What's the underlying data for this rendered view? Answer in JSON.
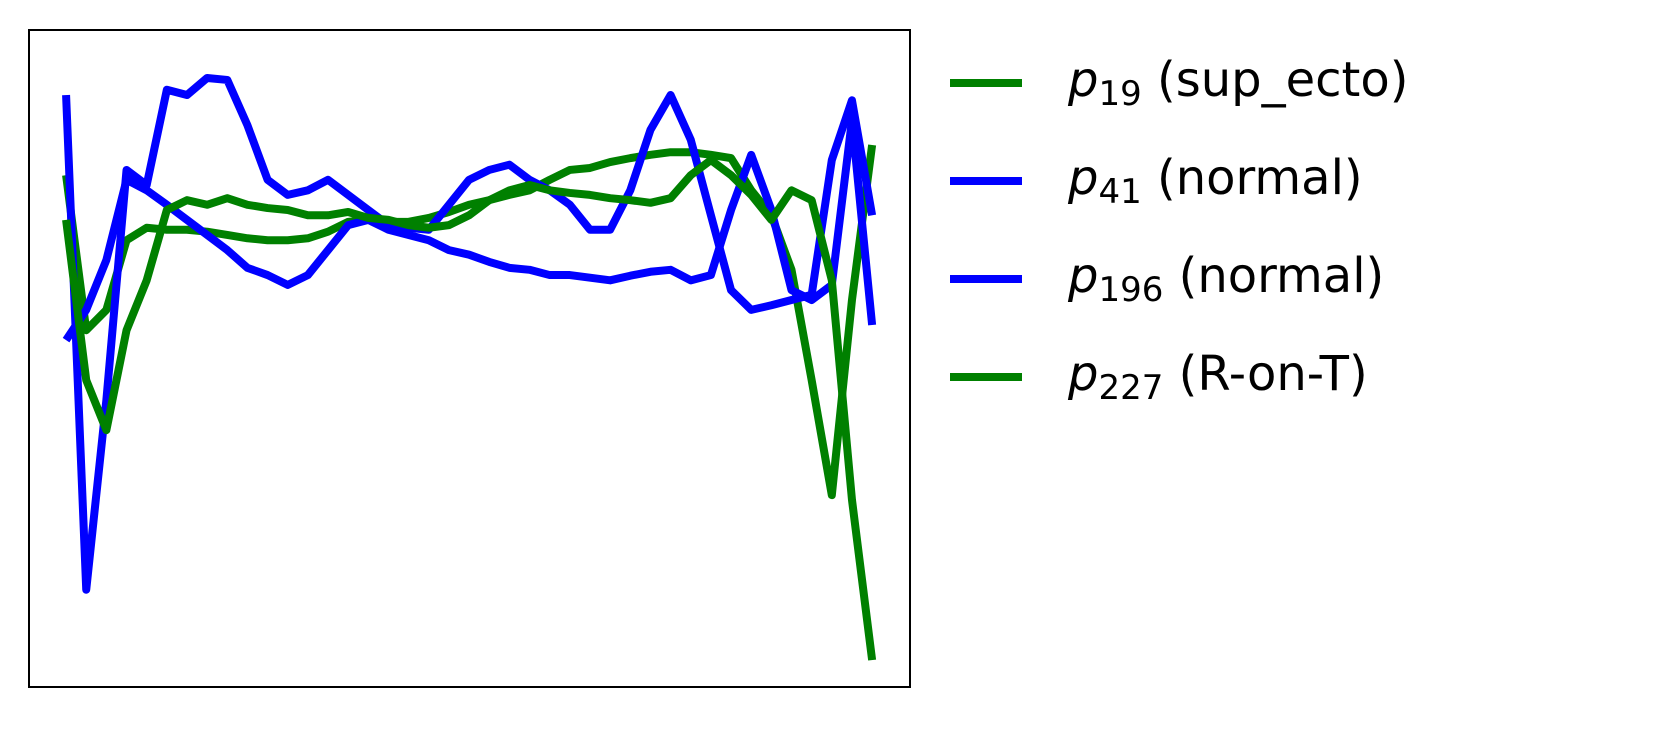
{
  "chart_data": {
    "type": "line",
    "x": [
      0,
      2.5,
      5,
      7.5,
      10,
      12.5,
      15,
      17.5,
      20,
      22.5,
      25,
      27.5,
      30,
      32.5,
      35,
      37.5,
      40,
      42.5,
      45,
      47.5,
      50,
      52.5,
      55,
      57.5,
      60,
      62.5,
      65,
      67.5,
      70,
      72.5,
      75,
      77.5,
      80,
      82.5,
      85,
      87.5,
      90,
      92.5,
      95,
      97.5,
      100
    ],
    "xlim": [
      -4.6,
      104.7
    ],
    "ylim": [
      0,
      100
    ],
    "legend": "outside right",
    "series": [
      {
        "name": "p19 (sup_ecto)",
        "color": "#008000",
        "values": [
          77.9,
          54.3,
          57.4,
          68.0,
          69.9,
          69.6,
          69.6,
          69.3,
          68.8,
          68.3,
          68.0,
          68.0,
          68.3,
          69.3,
          70.8,
          71.1,
          70.8,
          70.8,
          71.4,
          72.3,
          73.4,
          74.1,
          74.9,
          75.6,
          77.2,
          78.7,
          79.0,
          79.9,
          80.5,
          81.0,
          81.4,
          81.4,
          81.0,
          80.5,
          75.6,
          71.8,
          63.5,
          46.7,
          29.2,
          58.9,
          82.5
        ]
      },
      {
        "name": "p41 (normal)",
        "color": "#0000ff",
        "values": [
          90.1,
          14.8,
          43.7,
          78.7,
          76.4,
          90.9,
          90.1,
          92.7,
          92.4,
          85.5,
          77.2,
          74.9,
          75.6,
          77.2,
          74.9,
          72.6,
          70.3,
          69.9,
          69.6,
          73.4,
          77.2,
          78.7,
          79.5,
          77.2,
          75.6,
          73.4,
          69.6,
          69.6,
          75.6,
          84.8,
          90.1,
          83.3,
          71.8,
          60.4,
          57.4,
          58.1,
          58.9,
          59.7,
          80.2,
          89.3,
          71.8
        ]
      },
      {
        "name": "p196 (normal)",
        "color": "#0000ff",
        "values": [
          52.8,
          57.4,
          65.0,
          77.2,
          75.6,
          73.4,
          71.1,
          68.8,
          66.5,
          63.8,
          62.7,
          61.2,
          62.7,
          66.5,
          70.3,
          71.1,
          69.6,
          68.8,
          68.0,
          66.5,
          65.8,
          64.7,
          63.8,
          63.5,
          62.7,
          62.7,
          62.3,
          61.9,
          62.6,
          63.2,
          63.5,
          61.9,
          62.7,
          72.6,
          81.0,
          72.6,
          60.4,
          58.9,
          61.2,
          86.3,
          55.1
        ]
      },
      {
        "name": "p227 (R-on-T)",
        "color": "#008000",
        "values": [
          71.1,
          46.7,
          39.1,
          54.3,
          61.9,
          72.6,
          74.1,
          73.4,
          74.4,
          73.4,
          72.9,
          72.6,
          71.8,
          71.8,
          72.3,
          71.4,
          71.1,
          70.3,
          69.9,
          70.3,
          71.8,
          74.1,
          75.6,
          76.4,
          75.6,
          75.2,
          74.9,
          74.4,
          74.1,
          73.7,
          74.4,
          77.9,
          80.2,
          77.9,
          74.9,
          71.1,
          75.6,
          74.1,
          61.9,
          28.5,
          4.1
        ]
      }
    ]
  }
}
